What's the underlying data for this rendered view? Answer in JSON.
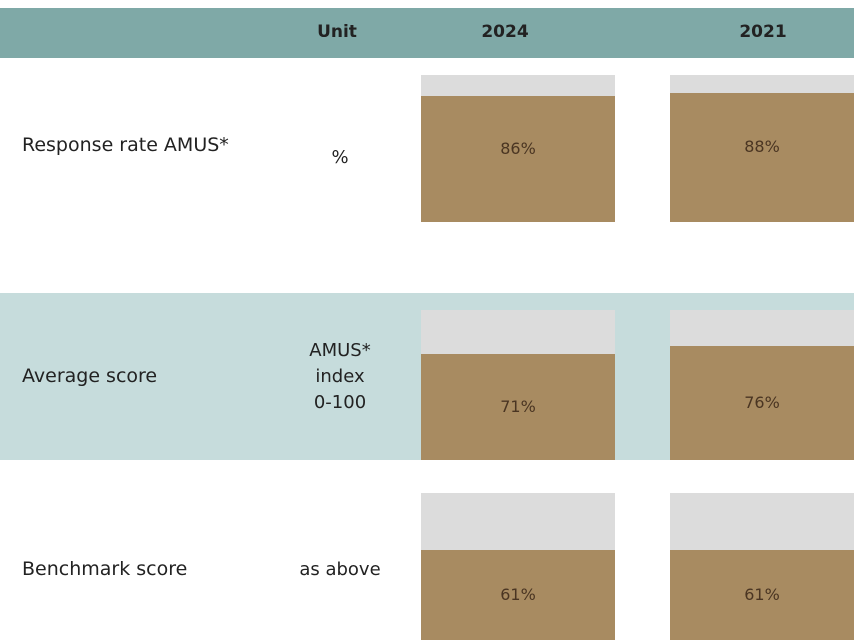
{
  "table": {
    "header": [
      "Unit",
      "2024",
      "2021"
    ],
    "rows": [
      {
        "label": "Response rate AMUS*",
        "unit": [
          "%"
        ],
        "values": [
          86,
          88
        ],
        "value_labels": [
          "86%",
          "88%"
        ]
      },
      {
        "label": "Average score",
        "unit": [
          "AMUS*",
          "index",
          "0-100"
        ],
        "values": [
          71,
          76
        ],
        "value_labels": [
          "71%",
          "76%"
        ]
      },
      {
        "label": "Benchmark score",
        "unit": [
          "as above"
        ],
        "values": [
          61,
          61
        ],
        "value_labels": [
          "61%",
          "61%"
        ]
      }
    ]
  }
}
